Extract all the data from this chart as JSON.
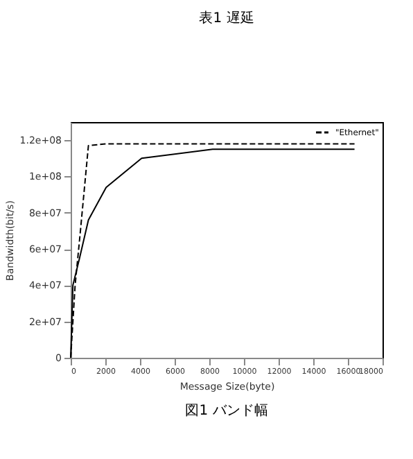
{
  "chart_data": {
    "type": "line",
    "xlabel": "Message Size(byte)",
    "ylabel": "Bandwidth(bit/s)",
    "annotations": [
      "表1 遅延",
      "図1 バンド幅"
    ],
    "series": [
      {
        "color": "#000000",
        "line_style": "solid",
        "x": [
          0,
          128,
          512,
          1024,
          2048,
          4096,
          8192,
          16384
        ],
        "values": [
          0,
          40000000,
          55000000,
          76000000,
          94000000,
          110000000,
          115000000,
          115000000
        ]
      },
      {
        "name": "\"Ethernet\"",
        "color": "#000000",
        "line_style": "dashed",
        "x": [
          0,
          256,
          512,
          1024,
          2048,
          4096,
          8192,
          16384
        ],
        "values": [
          0,
          40000000,
          65000000,
          117000000,
          118000000,
          118000000,
          118000000,
          118000000
        ]
      }
    ],
    "xlim": [
      0,
      18000
    ],
    "xticks": [
      0,
      2000,
      4000,
      6000,
      8000,
      10000,
      12000,
      14000,
      16000,
      18000
    ],
    "ylim": [
      0,
      130000000
    ],
    "yticks": [
      0,
      {
        "value": 20000000,
        "label": "2e+07"
      },
      {
        "value": 40000000,
        "label": "4e+07"
      },
      {
        "value": 60000000,
        "label": "6e+07"
      },
      {
        "value": 80000000,
        "label": "8e+07"
      },
      {
        "value": 100000000,
        "label": "1e+08"
      },
      {
        "value": 120000000,
        "label": "1.2e+08"
      }
    ],
    "grid": false,
    "legend": "top right",
    "marker": "none"
  }
}
